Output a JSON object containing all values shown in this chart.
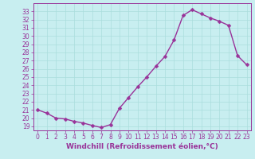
{
  "x": [
    0,
    1,
    2,
    3,
    4,
    5,
    6,
    7,
    8,
    9,
    10,
    11,
    12,
    13,
    14,
    15,
    16,
    17,
    18,
    19,
    20,
    21,
    22,
    23
  ],
  "y": [
    21.0,
    20.6,
    20.0,
    19.9,
    19.6,
    19.4,
    19.1,
    18.85,
    19.2,
    21.2,
    22.5,
    23.8,
    25.0,
    26.3,
    27.5,
    29.5,
    32.5,
    33.2,
    32.7,
    32.2,
    31.8,
    31.3,
    27.6,
    26.5
  ],
  "line_color": "#993399",
  "marker": "D",
  "markersize": 2.5,
  "linewidth": 1.0,
  "bg_color": "#c8eef0",
  "grid_color": "#aadddd",
  "xlabel": "Windchill (Refroidissement éolien,°C)",
  "ylim": [
    18.5,
    34.0
  ],
  "yticks": [
    19,
    20,
    21,
    22,
    23,
    24,
    25,
    26,
    27,
    28,
    29,
    30,
    31,
    32,
    33
  ],
  "xticks": [
    0,
    1,
    2,
    3,
    4,
    5,
    6,
    7,
    8,
    9,
    10,
    11,
    12,
    13,
    14,
    15,
    16,
    17,
    18,
    19,
    20,
    21,
    22,
    23
  ],
  "tick_color": "#993399",
  "label_color": "#993399",
  "axis_color": "#993399",
  "tick_fontsize": 5.5,
  "xlabel_fontsize": 6.5
}
